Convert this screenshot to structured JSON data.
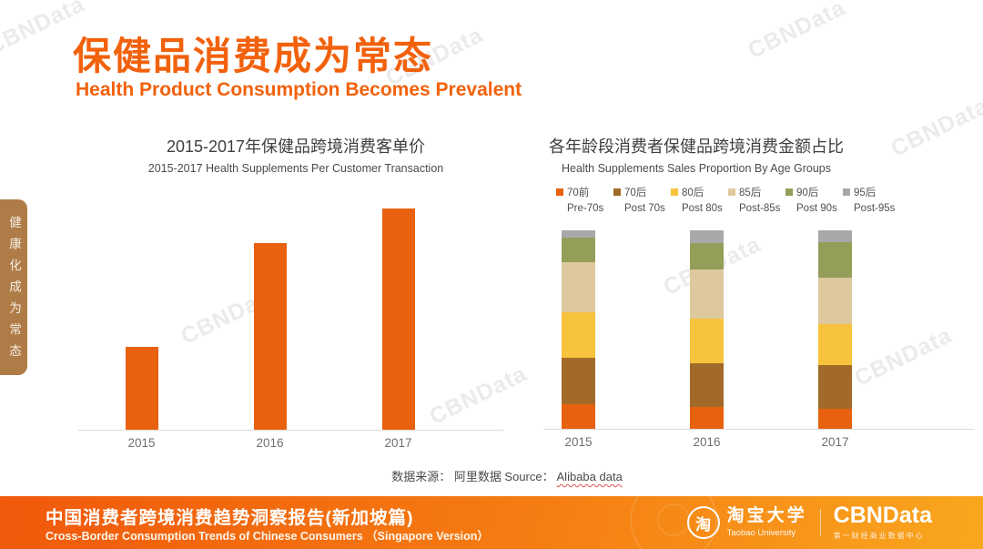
{
  "page": {
    "watermark": "CBNData",
    "sidebar_tab": "健康化成为常态",
    "title_cn": "保健品消费成为常态",
    "title_en": "Health Product Consumption Becomes Prevalent",
    "source_note_prefix": "数据来源： 阿里数据  Source： ",
    "source_note_underlined": "Alibaba data"
  },
  "footer": {
    "report_title_cn": "中国消费者跨境消费趋势洞察报告(新加坡篇)",
    "report_title_en": "Cross-Border Consumption Trends of Chinese Consumers （Singapore Version）",
    "taobao_logo_char": "淘",
    "taobao_name_cn": "淘宝大学",
    "taobao_name_en": "Taobao University",
    "cbndata_logo": "CBNData",
    "cbndata_tagline": "第一财经商业数据中心"
  },
  "colors": {
    "accent_orange": "#F2610C",
    "bar_orange": "#E8610F",
    "sidebar_tab_brown": "#AF7C48",
    "footer_gradient_start": "#F0590C",
    "footer_gradient_end": "#F9A71F",
    "axis_gray": "#DCDCDC",
    "spellcheck_underline_red": "#E05252"
  },
  "chart_data": [
    {
      "type": "bar",
      "title": "2015-2017年保健品跨境消费客单价",
      "subtitle": "2015-2017 Health Supplements Per Customer Transaction",
      "categories": [
        "2015",
        "2016",
        "2017"
      ],
      "values": [
        37.5,
        84.4,
        100
      ],
      "value_note": "no y-axis or data labels shown; values are bar heights as % of the 2017 bar",
      "bar_color": "#E8610F",
      "xlabel": "",
      "ylabel": "",
      "ylim": [
        0,
        100
      ],
      "grid": false,
      "legend_position": "none"
    },
    {
      "type": "bar",
      "stacked_100_percent": true,
      "title": "各年龄段消费者保健品跨境消费金额占比",
      "subtitle": "Health Supplements Sales Proportion By Age Groups",
      "categories": [
        "2015",
        "2016",
        "2017"
      ],
      "series": [
        {
          "name_cn": "70前",
          "name_en": "Pre-70s",
          "color": "#E8610F",
          "values": [
            12.4,
            11.0,
            10.0
          ]
        },
        {
          "name_cn": "70后",
          "name_en": "Post 70s",
          "color": "#A26A28",
          "values": [
            23.5,
            22.2,
            22.2
          ]
        },
        {
          "name_cn": "80后",
          "name_en": "Post 80s",
          "color": "#F7C33C",
          "values": [
            22.7,
            22.2,
            20.7
          ]
        },
        {
          "name_cn": "85后",
          "name_en": "Post-85s",
          "color": "#DEC89E",
          "values": [
            25.3,
            24.8,
            23.3
          ]
        },
        {
          "name_cn": "90后",
          "name_en": "Post 90s",
          "color": "#949E58",
          "values": [
            12.6,
            13.4,
            17.7
          ]
        },
        {
          "name_cn": "95后",
          "name_en": "Post-95s",
          "color": "#A8A8AA",
          "values": [
            3.5,
            6.4,
            6.1
          ]
        }
      ],
      "value_note": "percent of total sales per year, estimated from segment heights; no data labels shown",
      "xlabel": "",
      "ylabel": "",
      "grid": false,
      "legend_position": "top"
    }
  ]
}
